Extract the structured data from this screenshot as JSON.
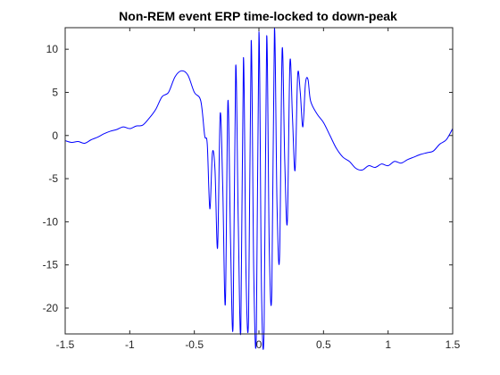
{
  "chart_data": {
    "type": "line",
    "title": "Non-REM event ERP time-locked to down-peak",
    "xlabel": "",
    "ylabel": "",
    "xlim": [
      -1.5,
      1.5
    ],
    "ylim": [
      -23,
      12.5
    ],
    "xticks": [
      -1.5,
      -1,
      -0.5,
      0,
      0.5,
      1,
      1.5
    ],
    "xtick_labels": [
      "-1.5",
      "-1",
      "-0.5",
      "0",
      "0.5",
      "1",
      "1.5"
    ],
    "yticks": [
      -20,
      -15,
      -10,
      -5,
      0,
      5,
      10
    ],
    "ytick_labels": [
      "-20",
      "-15",
      "-10",
      "-5",
      "0",
      "5",
      "10"
    ],
    "grid": false,
    "line_color": "#0000ff",
    "series": [
      {
        "x": [
          -1.5,
          -1.45,
          -1.4,
          -1.35,
          -1.3,
          -1.25,
          -1.2,
          -1.15,
          -1.1,
          -1.05,
          -1.0,
          -0.95,
          -0.9,
          -0.85,
          -0.8,
          -0.75,
          -0.7,
          -0.65,
          -0.6,
          -0.55,
          -0.5,
          -0.45,
          -0.42,
          -0.4,
          -0.38,
          -0.36,
          -0.34,
          -0.32,
          -0.3,
          -0.28,
          -0.26,
          -0.24,
          -0.22,
          -0.2,
          -0.18,
          -0.16,
          -0.14,
          -0.12,
          -0.1,
          -0.08,
          -0.06,
          -0.04,
          -0.02,
          0.0,
          0.02,
          0.04,
          0.06,
          0.08,
          0.1,
          0.12,
          0.14,
          0.16,
          0.18,
          0.2,
          0.22,
          0.24,
          0.26,
          0.28,
          0.3,
          0.32,
          0.34,
          0.36,
          0.38,
          0.4,
          0.45,
          0.5,
          0.55,
          0.6,
          0.65,
          0.7,
          0.75,
          0.8,
          0.85,
          0.9,
          0.95,
          1.0,
          1.05,
          1.1,
          1.15,
          1.2,
          1.25,
          1.3,
          1.35,
          1.4,
          1.45,
          1.5
        ],
        "y": [
          -0.6,
          -0.8,
          -0.7,
          -0.9,
          -0.5,
          -0.2,
          0.2,
          0.5,
          0.7,
          1.0,
          0.8,
          1.1,
          1.2,
          2.0,
          3.0,
          4.5,
          5.0,
          6.8,
          7.5,
          7.0,
          5.0,
          4.0,
          0.0,
          -1.0,
          -8.5,
          -2.0,
          -4.0,
          -13.0,
          2.5,
          -6.0,
          -19.5,
          4.0,
          -12.0,
          -22.0,
          8.0,
          -10.0,
          -22.5,
          9.0,
          -16.0,
          -21.0,
          11.0,
          -16.0,
          -23.0,
          12.0,
          -18.0,
          -22.5,
          11.5,
          -13.0,
          -18.0,
          12.3,
          -8.0,
          -14.0,
          10.0,
          -3.0,
          -10.0,
          8.5,
          2.0,
          -4.0,
          7.0,
          5.0,
          1.0,
          6.0,
          6.5,
          4.0,
          2.5,
          1.5,
          0.0,
          -1.5,
          -2.5,
          -3.0,
          -3.8,
          -4.0,
          -3.5,
          -3.7,
          -3.3,
          -3.5,
          -3.0,
          -3.2,
          -2.8,
          -2.5,
          -2.2,
          -2.0,
          -1.8,
          -1.0,
          -0.5,
          0.8
        ]
      }
    ]
  }
}
